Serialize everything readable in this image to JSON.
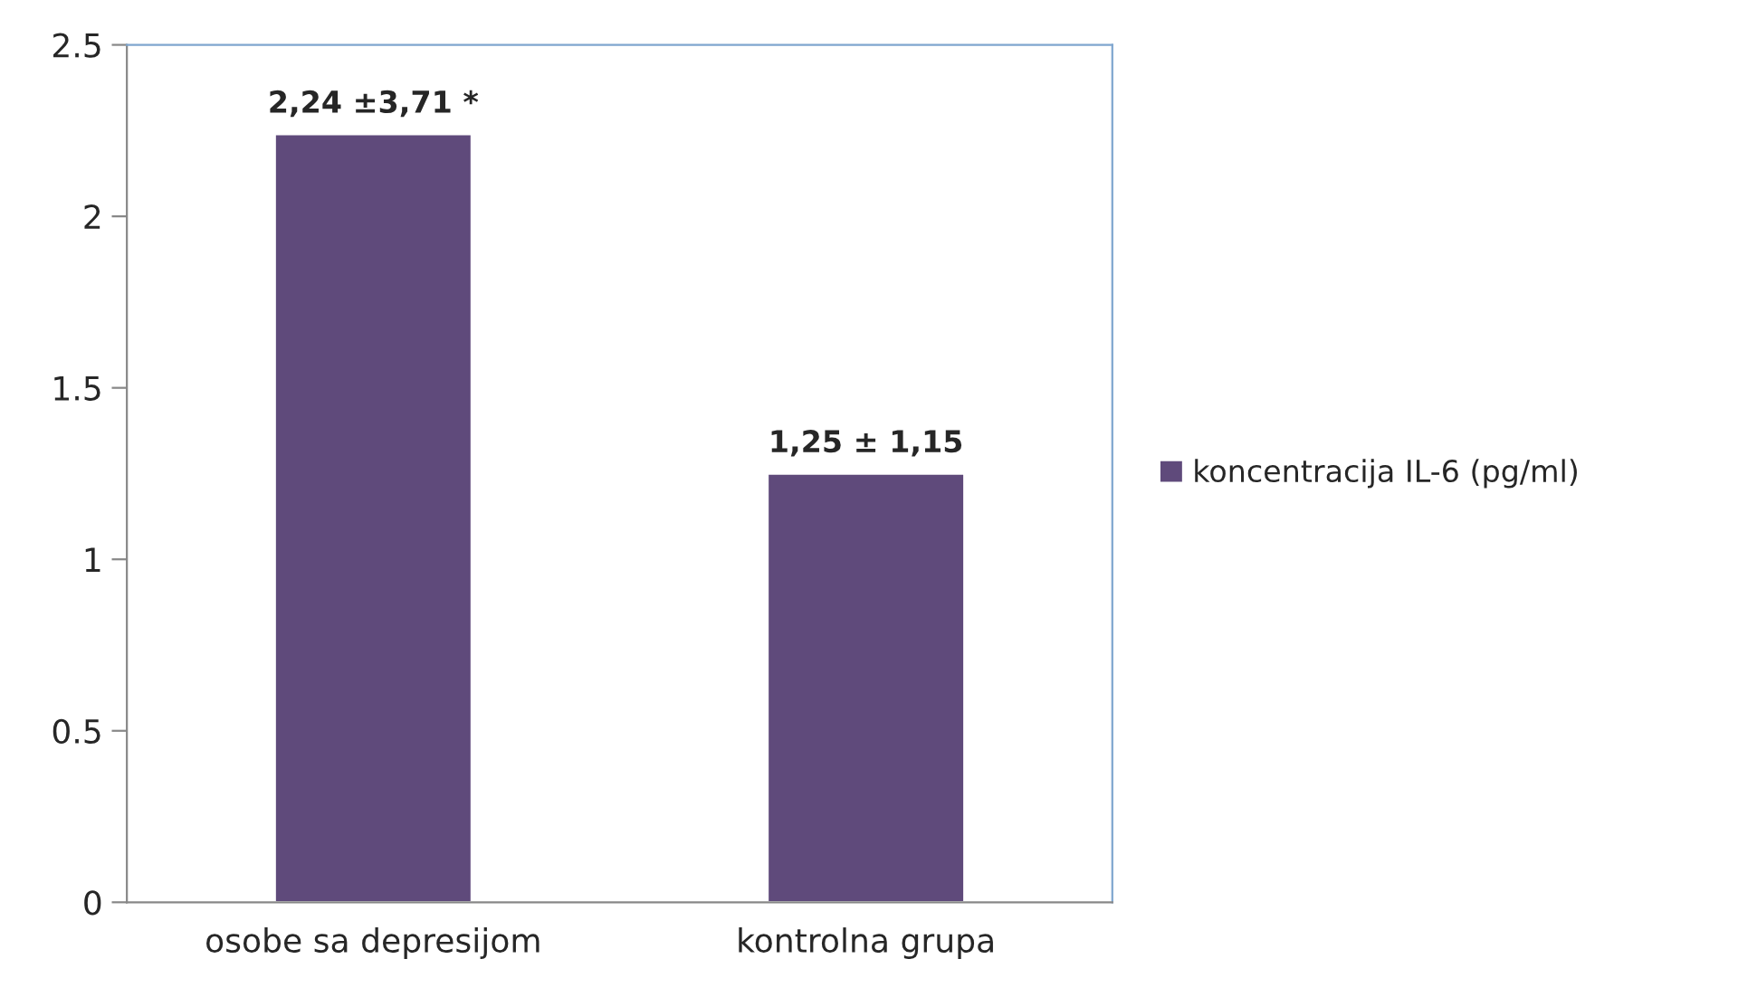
{
  "chart_data": {
    "type": "bar",
    "categories": [
      "osobe sa depresijom",
      "kontrolna grupa"
    ],
    "series": [
      {
        "name": "koncentracija IL-6 (pg/ml)",
        "color": "#5f4a7b",
        "values": [
          2.24,
          1.25
        ],
        "value_labels": [
          "2,24 ±3,71 *",
          "1,25 ± 1,15"
        ]
      }
    ],
    "ylim": [
      0,
      2.5
    ],
    "yticks": [
      0,
      0.5,
      1,
      1.5,
      2,
      2.5
    ],
    "grid": false,
    "legend": "right"
  }
}
